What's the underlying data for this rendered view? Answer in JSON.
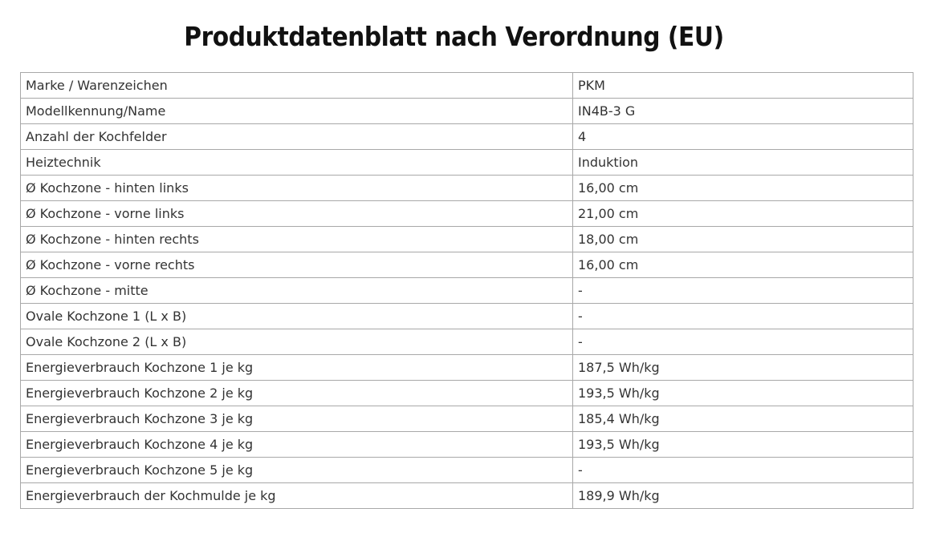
{
  "title": "Produktdatenblatt nach Verordnung (EU)",
  "rows": [
    {
      "label": "Marke / Warenzeichen",
      "value": "PKM"
    },
    {
      "label": "Modellkennung/Name",
      "value": "IN4B-3 G"
    },
    {
      "label": "Anzahl der Kochfelder",
      "value": "4"
    },
    {
      "label": "Heiztechnik",
      "value": "Induktion"
    },
    {
      "label": "Ø Kochzone - hinten links",
      "value": "16,00 cm"
    },
    {
      "label": "Ø Kochzone - vorne links",
      "value": "21,00 cm"
    },
    {
      "label": "Ø Kochzone - hinten rechts",
      "value": "18,00 cm"
    },
    {
      "label": "Ø Kochzone - vorne rechts",
      "value": "16,00 cm"
    },
    {
      "label": "Ø Kochzone - mitte",
      "value": "-"
    },
    {
      "label": "Ovale Kochzone 1 (L x B)",
      "value": "-"
    },
    {
      "label": "Ovale Kochzone 2 (L x B)",
      "value": "-"
    },
    {
      "label": "Energieverbrauch Kochzone 1 je kg",
      "value": "187,5 Wh/kg"
    },
    {
      "label": "Energieverbrauch Kochzone 2 je kg",
      "value": "193,5 Wh/kg"
    },
    {
      "label": "Energieverbrauch Kochzone 3 je kg",
      "value": "185,4 Wh/kg"
    },
    {
      "label": "Energieverbrauch Kochzone 4 je kg",
      "value": "193,5 Wh/kg"
    },
    {
      "label": "Energieverbrauch Kochzone 5 je kg",
      "value": "-"
    },
    {
      "label": "Energieverbrauch der Kochmulde je kg",
      "value": "189,9 Wh/kg"
    }
  ]
}
